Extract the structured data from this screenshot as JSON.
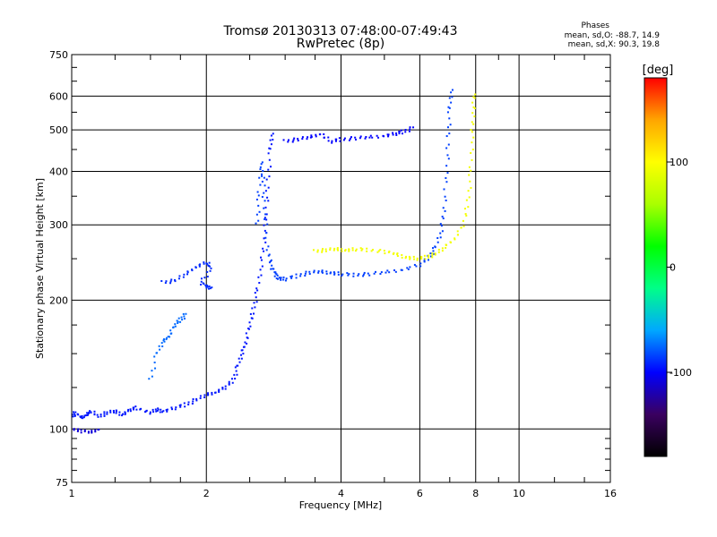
{
  "chart_data": {
    "type": "scatter",
    "title": "Tromsø 20130313 07:48:00-07:49:43",
    "subtitle": "RwPretec (8p)",
    "xlabel": "Frequency [MHz]",
    "ylabel": "Stationary phase Virtual Height [km]",
    "x_scale": "log2",
    "y_scale": "log",
    "xlim": [
      1,
      16
    ],
    "ylim": [
      75,
      750
    ],
    "x_ticks": [
      1,
      2,
      4,
      6,
      8,
      10,
      16
    ],
    "y_ticks": [
      75,
      100,
      200,
      300,
      400,
      500,
      600,
      750
    ],
    "grid": true,
    "phase_info": {
      "title": "Phases",
      "line_o": "mean, sd,O: -88.7, 14.9",
      "line_x": "mean, sd,X:  90.3, 19.8"
    },
    "colorbar": {
      "label": "[deg]",
      "range": [
        -180,
        180
      ],
      "ticks": [
        100,
        0,
        -100
      ],
      "colors": [
        "#000000",
        "#3a0060",
        "#0000ff",
        "#00a8ff",
        "#00ff88",
        "#00ff00",
        "#aaff00",
        "#ffff00",
        "#ffa500",
        "#ff0000"
      ]
    },
    "series": [
      {
        "phase": -95,
        "points": [
          [
            1.0,
            107
          ],
          [
            1.02,
            109
          ],
          [
            1.05,
            106
          ],
          [
            1.08,
            108
          ],
          [
            1.1,
            110
          ],
          [
            1.15,
            107
          ],
          [
            1.2,
            109
          ],
          [
            1.25,
            110
          ],
          [
            1.3,
            108
          ],
          [
            1.35,
            111
          ],
          [
            1.4,
            112
          ],
          [
            1.5,
            109
          ],
          [
            1.55,
            111
          ],
          [
            1.6,
            110
          ],
          [
            1.7,
            112
          ],
          [
            1.8,
            114
          ],
          [
            1.9,
            117
          ],
          [
            2.0,
            120
          ],
          [
            2.1,
            122
          ],
          [
            2.2,
            125
          ],
          [
            2.3,
            130
          ],
          [
            2.35,
            140
          ],
          [
            2.4,
            150
          ],
          [
            2.45,
            160
          ],
          [
            2.5,
            175
          ],
          [
            2.55,
            190
          ],
          [
            2.6,
            210
          ],
          [
            2.65,
            240
          ],
          [
            2.7,
            280
          ],
          [
            2.72,
            320
          ],
          [
            2.75,
            380
          ],
          [
            2.78,
            450
          ],
          [
            2.8,
            490
          ]
        ]
      },
      {
        "phase": -110,
        "points": [
          [
            1.0,
            100
          ],
          [
            1.05,
            99
          ],
          [
            1.1,
            98
          ],
          [
            1.15,
            100
          ]
        ]
      },
      {
        "phase": -85,
        "points": [
          [
            2.6,
            300
          ],
          [
            2.62,
            350
          ],
          [
            2.65,
            420
          ],
          [
            2.68,
            380
          ],
          [
            2.7,
            320
          ],
          [
            2.75,
            260
          ],
          [
            2.8,
            240
          ],
          [
            2.85,
            230
          ],
          [
            2.9,
            225
          ],
          [
            3.0,
            224
          ],
          [
            3.2,
            228
          ],
          [
            3.4,
            232
          ],
          [
            3.6,
            233
          ],
          [
            3.8,
            232
          ],
          [
            4.0,
            230
          ],
          [
            4.3,
            229
          ],
          [
            4.6,
            230
          ],
          [
            5.0,
            232
          ],
          [
            5.5,
            236
          ],
          [
            6.0,
            242
          ],
          [
            6.3,
            252
          ],
          [
            6.5,
            265
          ],
          [
            6.7,
            290
          ],
          [
            6.8,
            330
          ],
          [
            6.9,
            400
          ],
          [
            6.95,
            480
          ],
          [
            7.0,
            560
          ],
          [
            7.05,
            620
          ]
        ]
      },
      {
        "phase": 95,
        "points": [
          [
            3.5,
            260
          ],
          [
            3.7,
            262
          ],
          [
            3.9,
            263
          ],
          [
            4.1,
            262
          ],
          [
            4.3,
            263
          ],
          [
            4.6,
            262
          ],
          [
            5.0,
            260
          ],
          [
            5.3,
            256
          ],
          [
            5.6,
            252
          ],
          [
            5.9,
            250
          ],
          [
            6.2,
            252
          ],
          [
            6.5,
            256
          ],
          [
            6.8,
            265
          ],
          [
            7.2,
            280
          ],
          [
            7.5,
            300
          ],
          [
            7.7,
            340
          ],
          [
            7.8,
            400
          ],
          [
            7.85,
            480
          ],
          [
            7.9,
            550
          ],
          [
            7.95,
            610
          ]
        ]
      },
      {
        "phase": -100,
        "points": [
          [
            3.0,
            470
          ],
          [
            3.2,
            475
          ],
          [
            3.4,
            480
          ],
          [
            3.6,
            490
          ],
          [
            3.8,
            470
          ],
          [
            4.0,
            475
          ],
          [
            4.3,
            478
          ],
          [
            4.6,
            480
          ],
          [
            5.0,
            485
          ],
          [
            5.3,
            490
          ],
          [
            5.5,
            495
          ],
          [
            5.8,
            505
          ]
        ]
      },
      {
        "phase": -90,
        "points": [
          [
            1.6,
            220
          ],
          [
            1.7,
            222
          ],
          [
            1.8,
            230
          ],
          [
            1.9,
            240
          ],
          [
            2.0,
            245
          ],
          [
            2.05,
            238
          ],
          [
            1.95,
            220
          ],
          [
            2.0,
            215
          ],
          [
            2.05,
            214
          ]
        ]
      },
      {
        "phase": -75,
        "points": [
          [
            1.5,
            130
          ],
          [
            1.55,
            150
          ],
          [
            1.6,
            160
          ],
          [
            1.65,
            165
          ],
          [
            1.7,
            175
          ],
          [
            1.75,
            180
          ],
          [
            1.8,
            185
          ]
        ]
      }
    ]
  }
}
